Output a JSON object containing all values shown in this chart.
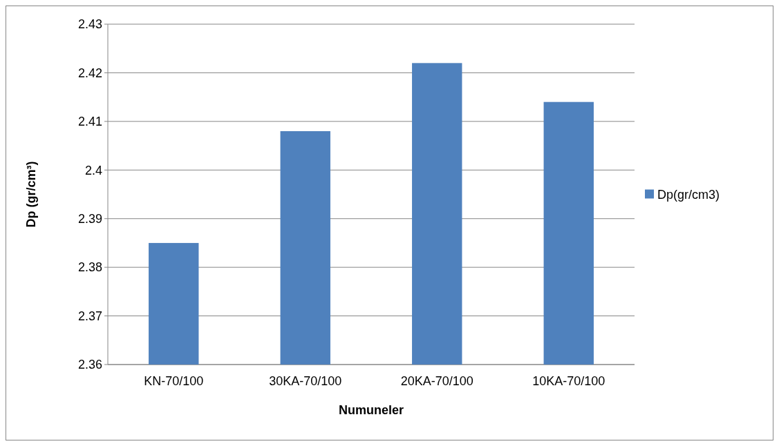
{
  "chart_data": {
    "type": "bar",
    "xlabel": "Numuneler",
    "ylabel": "Dp (gr/cm³)",
    "categories": [
      "KN-70/100",
      "30KA-70/100",
      "20KA-70/100",
      "10KA-70/100"
    ],
    "series": [
      {
        "name": "Dp(gr/cm3)",
        "color": "#4f81bd",
        "values": [
          2.385,
          2.408,
          2.422,
          2.414
        ]
      }
    ],
    "ylim": [
      2.36,
      2.43
    ],
    "yticks": [
      2.36,
      2.37,
      2.38,
      2.39,
      2.4,
      2.41,
      2.42,
      2.43
    ],
    "grid": "y",
    "legend": "right"
  }
}
